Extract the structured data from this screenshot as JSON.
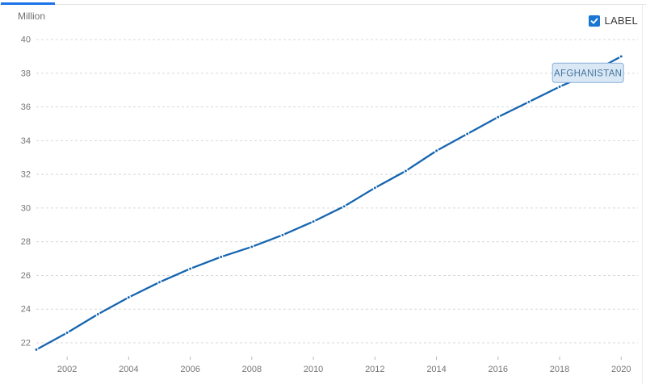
{
  "panel": {
    "y_axis_unit": "Million"
  },
  "controls": {
    "label_toggle": "LABEL",
    "label_checked": true
  },
  "colors": {
    "accent_tab": "#1a73e8",
    "line": "#1565b0",
    "checkbox_fill": "#1976d2",
    "grid_line": "#d8d8d8",
    "axis_text": "#767676",
    "tick_mark": "#b9b9b9",
    "series_label_bg": "#dae8f6",
    "series_label_border": "#85afd7",
    "series_label_text": "#45749c"
  },
  "chart_data": {
    "type": "line",
    "title": "",
    "xlabel": "",
    "ylabel": "Million",
    "x": [
      2001,
      2002,
      2003,
      2004,
      2005,
      2006,
      2007,
      2008,
      2009,
      2010,
      2011,
      2012,
      2013,
      2014,
      2015,
      2016,
      2017,
      2018,
      2019,
      2020
    ],
    "series": [
      {
        "name": "AFGHANISTAN",
        "values": [
          21.6,
          22.6,
          23.7,
          24.7,
          25.6,
          26.4,
          27.1,
          27.7,
          28.4,
          29.2,
          30.1,
          31.2,
          32.2,
          33.4,
          34.4,
          35.4,
          36.3,
          37.2,
          38.0,
          39.0
        ]
      }
    ],
    "x_ticks": [
      2002,
      2004,
      2006,
      2008,
      2010,
      2012,
      2014,
      2016,
      2018,
      2020
    ],
    "y_ticks": [
      22,
      24,
      26,
      28,
      30,
      32,
      34,
      36,
      38,
      40
    ],
    "ylim": [
      21.0,
      40.6
    ],
    "grid": "horizontal-dashed",
    "legend_position": "none",
    "series_label_visible": true,
    "markers": "dot-with-white-halo"
  }
}
